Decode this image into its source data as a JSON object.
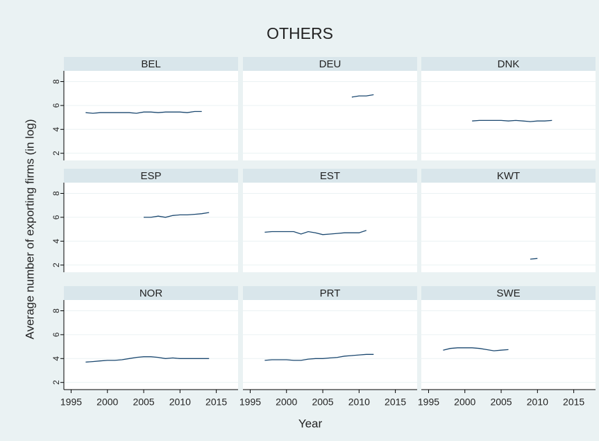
{
  "title": "OTHERS",
  "x_label": "Year",
  "y_label": "Average number of exporting firms (in log)",
  "xlim": [
    1994,
    2018
  ],
  "xticks": [
    1995,
    2000,
    2005,
    2010,
    2015
  ],
  "ylim": [
    1.4,
    8.9
  ],
  "yticks": [
    2,
    4,
    6,
    8
  ],
  "grid": true,
  "chart_data": [
    {
      "type": "line",
      "title": "BEL",
      "color": "#1a476f",
      "x": [
        1997,
        1998,
        1999,
        2000,
        2001,
        2002,
        2003,
        2004,
        2005,
        2006,
        2007,
        2008,
        2009,
        2010,
        2011,
        2012,
        2013
      ],
      "values": [
        5.4,
        5.35,
        5.4,
        5.4,
        5.4,
        5.4,
        5.4,
        5.35,
        5.45,
        5.45,
        5.4,
        5.45,
        5.45,
        5.45,
        5.4,
        5.5,
        5.5
      ]
    },
    {
      "type": "line",
      "title": "DEU",
      "color": "#1a476f",
      "x": [
        2009,
        2010,
        2011,
        2012
      ],
      "values": [
        6.7,
        6.8,
        6.8,
        6.9
      ]
    },
    {
      "type": "line",
      "title": "DNK",
      "color": "#1a476f",
      "x": [
        2001,
        2002,
        2003,
        2004,
        2005,
        2006,
        2007,
        2008,
        2009,
        2010,
        2011,
        2012
      ],
      "values": [
        4.7,
        4.75,
        4.75,
        4.75,
        4.75,
        4.7,
        4.75,
        4.7,
        4.65,
        4.7,
        4.7,
        4.75
      ]
    },
    {
      "type": "line",
      "title": "ESP",
      "color": "#1a476f",
      "x": [
        2005,
        2006,
        2007,
        2008,
        2009,
        2010,
        2011,
        2012,
        2013,
        2014
      ],
      "values": [
        6.0,
        6.0,
        6.1,
        6.0,
        6.15,
        6.2,
        6.2,
        6.25,
        6.3,
        6.4
      ]
    },
    {
      "type": "line",
      "title": "EST",
      "color": "#1a476f",
      "x": [
        1997,
        1998,
        1999,
        2000,
        2001,
        2002,
        2003,
        2004,
        2005,
        2006,
        2007,
        2008,
        2009,
        2010,
        2011
      ],
      "values": [
        4.75,
        4.8,
        4.8,
        4.8,
        4.8,
        4.6,
        4.8,
        4.7,
        4.55,
        4.6,
        4.65,
        4.7,
        4.7,
        4.7,
        4.9
      ]
    },
    {
      "type": "line",
      "title": "KWT",
      "color": "#1a476f",
      "x": [
        2009,
        2010
      ],
      "values": [
        2.5,
        2.55
      ]
    },
    {
      "type": "line",
      "title": "NOR",
      "color": "#1a476f",
      "x": [
        1997,
        1998,
        1999,
        2000,
        2001,
        2002,
        2003,
        2004,
        2005,
        2006,
        2007,
        2008,
        2009,
        2010,
        2011,
        2012,
        2013,
        2014
      ],
      "values": [
        3.7,
        3.75,
        3.8,
        3.85,
        3.85,
        3.9,
        4.0,
        4.1,
        4.15,
        4.15,
        4.1,
        4.0,
        4.05,
        4.0,
        4.0,
        4.0,
        4.0,
        4.0
      ]
    },
    {
      "type": "line",
      "title": "PRT",
      "color": "#1a476f",
      "x": [
        1997,
        1998,
        1999,
        2000,
        2001,
        2002,
        2003,
        2004,
        2005,
        2006,
        2007,
        2008,
        2009,
        2010,
        2011,
        2012
      ],
      "values": [
        3.85,
        3.9,
        3.9,
        3.9,
        3.85,
        3.85,
        3.95,
        4.0,
        4.0,
        4.05,
        4.1,
        4.2,
        4.25,
        4.3,
        4.35,
        4.35
      ]
    },
    {
      "type": "line",
      "title": "SWE",
      "color": "#1a476f",
      "x": [
        1997,
        1998,
        1999,
        2000,
        2001,
        2002,
        2003,
        2004,
        2005,
        2006
      ],
      "values": [
        4.7,
        4.85,
        4.9,
        4.9,
        4.9,
        4.85,
        4.75,
        4.65,
        4.7,
        4.75
      ]
    }
  ]
}
